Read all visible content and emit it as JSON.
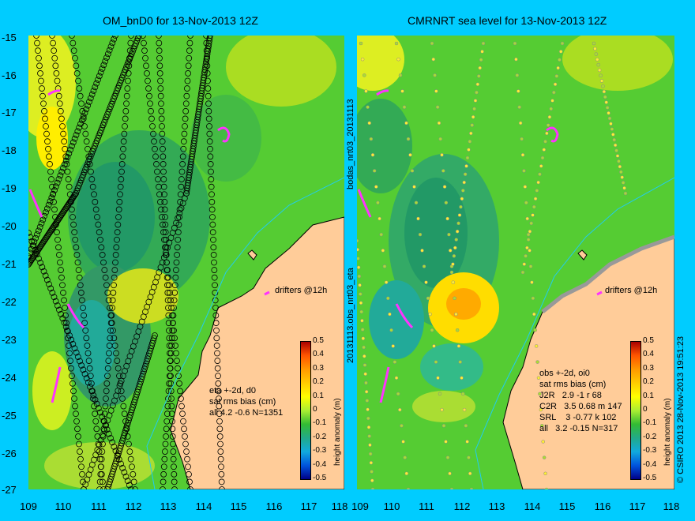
{
  "left": {
    "title": "OM_bnD0 for 13-Nov-2013 12Z",
    "legend": [
      "eta +-2d, d0",
      "sat rms bias (cm)",
      "all 4.2 -0.6 N=1351"
    ],
    "side_label": "bodas_nrt03_20131113",
    "drifters": "drifters @12h"
  },
  "right": {
    "title": "CMRNRT sea level  for 13-Nov-2013 12Z",
    "legend": [
      "obs +-2d, oi0",
      "sat rms bias (cm)",
      "J2R   2.9 -1 r 68",
      "C2R   3.5 0.68 m 147",
      "SRL    3 -0.77 k 102",
      "all   3.2 -0.15 N=317"
    ],
    "side_label": "20131113.obs_nrt03_eta",
    "drifters": "drifters @12h"
  },
  "y_labels": [
    "-15",
    "-16",
    "-17",
    "-18",
    "-19",
    "-20",
    "-21",
    "-22",
    "-23",
    "-24",
    "-25",
    "-26",
    "-27"
  ],
  "x_labels": [
    "109",
    "110",
    "111",
    "112",
    "113",
    "114",
    "115",
    "116",
    "117",
    "118"
  ],
  "colorbar": {
    "ticks": [
      "0.5",
      "0.4",
      "0.3",
      "0.2",
      "0.1",
      "0",
      "-0.1",
      "-0.2",
      "-0.3",
      "-0.4",
      "-0.5"
    ],
    "label": "height anomaly (m)",
    "colors": [
      "#aa0000",
      "#ff5500",
      "#ff9900",
      "#ffcc00",
      "#ffff00",
      "#aaee33",
      "#33bb33",
      "#22aa88",
      "#11aadd",
      "#0055dd",
      "#000088"
    ]
  },
  "credit": "© CSIRO 2013   28-Nov-2013 19:51:23",
  "colors": {
    "background": "#00ccff",
    "ocean_base": "#55cc33",
    "land": "#ffcc99",
    "drifter": "#ff33ff",
    "track_marker": "#000000"
  }
}
